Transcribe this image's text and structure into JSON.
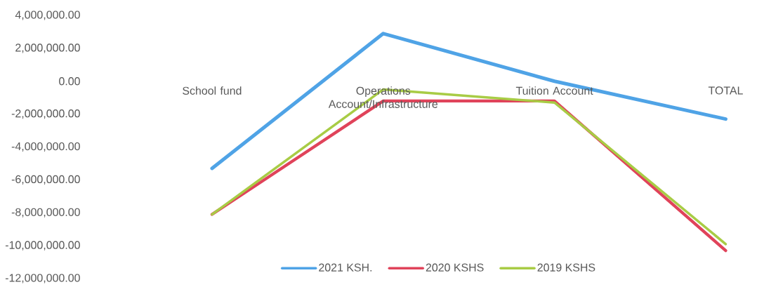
{
  "chart_data": {
    "type": "line",
    "categories": [
      "School fund",
      "Operations Account/Infrastructure",
      "Tuition Account",
      "TOTAL"
    ],
    "series": [
      {
        "name": "2021 KSH.",
        "color": "#4fa3e6",
        "values": [
          -5300000,
          2900000,
          0,
          -2300000
        ]
      },
      {
        "name": "2020 KSHS",
        "color": "#e0435a",
        "values": [
          -8100000,
          -1200000,
          -1200000,
          -10300000
        ]
      },
      {
        "name": "2019 KSHS",
        "color": "#a8cc45",
        "values": [
          -8100000,
          -500000,
          -1300000,
          -9900000
        ]
      }
    ],
    "ylim": [
      -12000000,
      4000000
    ],
    "yticks": [
      {
        "value": -12000000,
        "label": "-12,000,000.00"
      },
      {
        "value": -10000000,
        "label": "-10,000,000.00"
      },
      {
        "value": -8000000,
        "label": "-8,000,000.00"
      },
      {
        "value": -6000000,
        "label": "-6,000,000.00"
      },
      {
        "value": -4000000,
        "label": "-4,000,000.00"
      },
      {
        "value": -2000000,
        "label": "-2,000,000.00"
      },
      {
        "value": 0,
        "label": "0.00"
      },
      {
        "value": 2000000,
        "label": "2,000,000.00"
      },
      {
        "value": 4000000,
        "label": "4,000,000.00"
      }
    ],
    "legend": "bottom"
  }
}
